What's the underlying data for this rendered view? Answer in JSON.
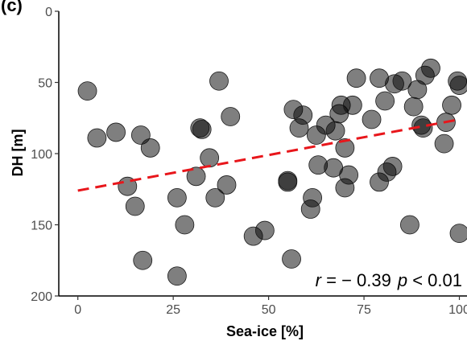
{
  "chart_data": {
    "type": "scatter",
    "title": "",
    "panel_label": "(c)",
    "xlabel": "Sea-ice [%]",
    "ylabel": "DH [m]",
    "xlim": [
      -5,
      102
    ],
    "ylim": [
      200,
      0
    ],
    "y_reversed": true,
    "x_ticks": [
      0,
      25,
      50,
      75,
      100
    ],
    "y_ticks": [
      0,
      50,
      100,
      150,
      200
    ],
    "x_tick_labels": [
      "0",
      "25",
      "50",
      "75",
      "100"
    ],
    "y_tick_labels": [
      "0",
      "50",
      "100",
      "150",
      "200"
    ],
    "grid": false,
    "marker_color": "#000000",
    "marker_opacity": 0.5,
    "points": [
      {
        "x": 2.5,
        "y": 56
      },
      {
        "x": 5,
        "y": 89
      },
      {
        "x": 10,
        "y": 85
      },
      {
        "x": 13,
        "y": 123
      },
      {
        "x": 15,
        "y": 137
      },
      {
        "x": 16.5,
        "y": 87
      },
      {
        "x": 17,
        "y": 175
      },
      {
        "x": 19,
        "y": 96
      },
      {
        "x": 26,
        "y": 186
      },
      {
        "x": 26,
        "y": 131
      },
      {
        "x": 28,
        "y": 150
      },
      {
        "x": 31,
        "y": 116
      },
      {
        "x": 32,
        "y": 82
      },
      {
        "x": 32.5,
        "y": 83
      },
      {
        "x": 34.5,
        "y": 103
      },
      {
        "x": 36,
        "y": 131
      },
      {
        "x": 37,
        "y": 49
      },
      {
        "x": 39,
        "y": 122
      },
      {
        "x": 40,
        "y": 74
      },
      {
        "x": 46,
        "y": 158
      },
      {
        "x": 49,
        "y": 154
      },
      {
        "x": 55,
        "y": 120
      },
      {
        "x": 55,
        "y": 119
      },
      {
        "x": 56,
        "y": 174
      },
      {
        "x": 56.5,
        "y": 69
      },
      {
        "x": 58,
        "y": 82
      },
      {
        "x": 59,
        "y": 73
      },
      {
        "x": 61,
        "y": 139
      },
      {
        "x": 61.5,
        "y": 131
      },
      {
        "x": 62.5,
        "y": 87
      },
      {
        "x": 63,
        "y": 108
      },
      {
        "x": 65,
        "y": 80
      },
      {
        "x": 67,
        "y": 110
      },
      {
        "x": 67.5,
        "y": 84
      },
      {
        "x": 68.5,
        "y": 72
      },
      {
        "x": 69,
        "y": 66
      },
      {
        "x": 70,
        "y": 96
      },
      {
        "x": 70,
        "y": 124
      },
      {
        "x": 71,
        "y": 115
      },
      {
        "x": 72,
        "y": 66
      },
      {
        "x": 73,
        "y": 47
      },
      {
        "x": 77,
        "y": 76
      },
      {
        "x": 79,
        "y": 47
      },
      {
        "x": 79,
        "y": 120
      },
      {
        "x": 80.5,
        "y": 63
      },
      {
        "x": 81,
        "y": 113
      },
      {
        "x": 82.5,
        "y": 109
      },
      {
        "x": 83,
        "y": 51
      },
      {
        "x": 85,
        "y": 49
      },
      {
        "x": 87,
        "y": 150
      },
      {
        "x": 88,
        "y": 67
      },
      {
        "x": 89,
        "y": 55
      },
      {
        "x": 90,
        "y": 80
      },
      {
        "x": 90.5,
        "y": 82
      },
      {
        "x": 91,
        "y": 45
      },
      {
        "x": 92.5,
        "y": 40
      },
      {
        "x": 96,
        "y": 93
      },
      {
        "x": 96.5,
        "y": 78
      },
      {
        "x": 98,
        "y": 66
      },
      {
        "x": 99.5,
        "y": 49
      },
      {
        "x": 100,
        "y": 52
      },
      {
        "x": 100,
        "y": 156
      }
    ],
    "trend_line": {
      "style": "dashed",
      "color": "#e8161b",
      "x": [
        0,
        100
      ],
      "y": [
        126,
        76
      ]
    },
    "annotation": {
      "r_symbol": "r",
      "r_text": " = − 0.39",
      "p_symbol": "p",
      "p_text": " < 0.01"
    }
  }
}
